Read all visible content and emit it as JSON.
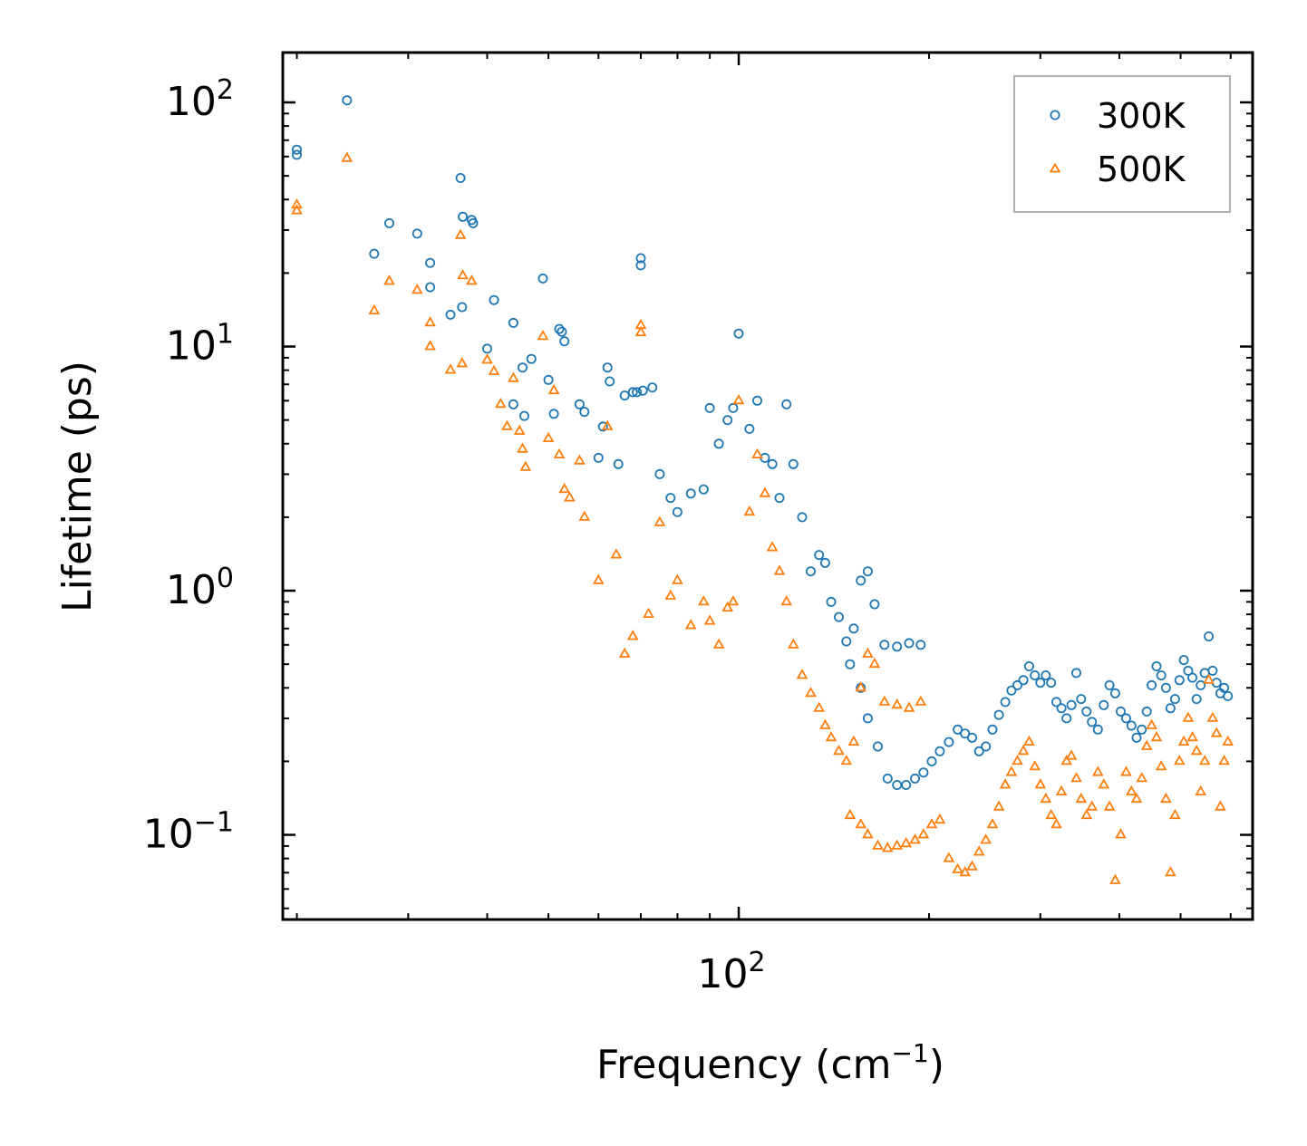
{
  "chart_data": {
    "type": "scatter",
    "xscale": "log",
    "yscale": "log",
    "xlabel": "Frequency (cm",
    "xlabel_sup": "−1",
    "xlabel_end": ")",
    "ylabel": "Lifetime (ps)",
    "xlim": [
      19,
      650
    ],
    "ylim": [
      0.045,
      160
    ],
    "legend_position": "upper right",
    "x_ticks": [
      {
        "base": "10",
        "exp": "2",
        "value": 100
      }
    ],
    "y_ticks": [
      {
        "base": "10",
        "exp": "2",
        "value": 100
      },
      {
        "base": "10",
        "exp": "1",
        "value": 10
      },
      {
        "base": "10",
        "exp": "0",
        "value": 1
      },
      {
        "base": "10",
        "exp": "−1",
        "value": 0.1
      }
    ],
    "series": [
      {
        "name": "300K",
        "marker": "circle",
        "color": "#1f77b4",
        "points": [
          [
            20,
            64
          ],
          [
            20,
            61
          ],
          [
            24,
            102
          ],
          [
            26.5,
            24
          ],
          [
            28,
            32
          ],
          [
            31,
            29
          ],
          [
            32.5,
            22
          ],
          [
            32.5,
            17.5
          ],
          [
            35,
            13.5
          ],
          [
            36.5,
            14.5
          ],
          [
            36.3,
            49
          ],
          [
            36.6,
            34
          ],
          [
            37.8,
            33
          ],
          [
            38,
            32
          ],
          [
            40,
            9.8
          ],
          [
            41,
            15.5
          ],
          [
            44,
            12.5
          ],
          [
            44,
            5.8
          ],
          [
            45.5,
            8.2
          ],
          [
            45.8,
            5.2
          ],
          [
            47,
            8.9
          ],
          [
            49,
            19
          ],
          [
            50,
            7.3
          ],
          [
            51,
            5.3
          ],
          [
            52,
            11.8
          ],
          [
            52.5,
            11.5
          ],
          [
            53,
            10.5
          ],
          [
            56,
            5.8
          ],
          [
            57,
            5.4
          ],
          [
            60,
            3.5
          ],
          [
            61,
            4.7
          ],
          [
            62,
            8.2
          ],
          [
            62.5,
            7.2
          ],
          [
            64.5,
            3.3
          ],
          [
            66,
            6.3
          ],
          [
            68,
            6.5
          ],
          [
            69,
            6.5
          ],
          [
            70,
            23
          ],
          [
            70,
            21.5
          ],
          [
            70.5,
            6.6
          ],
          [
            73,
            6.8
          ],
          [
            75,
            3.0
          ],
          [
            78,
            2.4
          ],
          [
            80,
            2.1
          ],
          [
            84,
            2.5
          ],
          [
            88,
            2.6
          ],
          [
            90,
            5.6
          ],
          [
            93,
            4.0
          ],
          [
            96,
            5.0
          ],
          [
            98,
            5.6
          ],
          [
            100,
            11.3
          ],
          [
            104,
            4.6
          ],
          [
            107,
            6.0
          ],
          [
            110,
            3.5
          ],
          [
            113,
            3.3
          ],
          [
            116,
            2.4
          ],
          [
            119,
            5.8
          ],
          [
            122,
            3.3
          ],
          [
            126,
            2.0
          ],
          [
            130,
            1.2
          ],
          [
            134,
            1.4
          ],
          [
            137,
            1.3
          ],
          [
            140,
            0.9
          ],
          [
            144,
            0.78
          ],
          [
            148,
            0.62
          ],
          [
            152,
            0.7
          ],
          [
            156,
            1.1
          ],
          [
            160,
            1.2
          ],
          [
            164,
            0.88
          ],
          [
            170,
            0.6
          ],
          [
            178,
            0.59
          ],
          [
            186,
            0.61
          ],
          [
            194,
            0.6
          ],
          [
            150,
            0.5
          ],
          [
            156,
            0.4
          ],
          [
            160,
            0.3
          ],
          [
            166,
            0.23
          ],
          [
            172,
            0.17
          ],
          [
            178,
            0.16
          ],
          [
            184,
            0.16
          ],
          [
            190,
            0.17
          ],
          [
            196,
            0.18
          ],
          [
            202,
            0.2
          ],
          [
            208,
            0.22
          ],
          [
            215,
            0.24
          ],
          [
            222,
            0.27
          ],
          [
            228,
            0.26
          ],
          [
            234,
            0.25
          ],
          [
            240,
            0.22
          ],
          [
            246,
            0.23
          ],
          [
            252,
            0.27
          ],
          [
            258,
            0.31
          ],
          [
            264,
            0.35
          ],
          [
            270,
            0.39
          ],
          [
            276,
            0.41
          ],
          [
            282,
            0.43
          ],
          [
            288,
            0.49
          ],
          [
            294,
            0.45
          ],
          [
            300,
            0.42
          ],
          [
            306,
            0.45
          ],
          [
            312,
            0.42
          ],
          [
            318,
            0.35
          ],
          [
            324,
            0.33
          ],
          [
            330,
            0.3
          ],
          [
            336,
            0.34
          ],
          [
            342,
            0.46
          ],
          [
            348,
            0.36
          ],
          [
            355,
            0.32
          ],
          [
            362,
            0.29
          ],
          [
            370,
            0.27
          ],
          [
            378,
            0.34
          ],
          [
            386,
            0.41
          ],
          [
            394,
            0.38
          ],
          [
            402,
            0.32
          ],
          [
            410,
            0.3
          ],
          [
            418,
            0.28
          ],
          [
            426,
            0.25
          ],
          [
            434,
            0.27
          ],
          [
            442,
            0.32
          ],
          [
            450,
            0.41
          ],
          [
            458,
            0.49
          ],
          [
            466,
            0.45
          ],
          [
            474,
            0.4
          ],
          [
            482,
            0.33
          ],
          [
            490,
            0.36
          ],
          [
            498,
            0.43
          ],
          [
            506,
            0.52
          ],
          [
            514,
            0.47
          ],
          [
            522,
            0.44
          ],
          [
            530,
            0.36
          ],
          [
            538,
            0.41
          ],
          [
            546,
            0.46
          ],
          [
            554,
            0.65
          ],
          [
            562,
            0.47
          ],
          [
            570,
            0.42
          ],
          [
            578,
            0.38
          ],
          [
            586,
            0.4
          ],
          [
            594,
            0.37
          ]
        ]
      },
      {
        "name": "500K",
        "marker": "triangle",
        "color": "#ff7f0e",
        "points": [
          [
            20,
            38
          ],
          [
            20,
            36
          ],
          [
            24,
            59
          ],
          [
            26.5,
            14
          ],
          [
            28,
            18.5
          ],
          [
            31,
            17
          ],
          [
            32.5,
            12.5
          ],
          [
            32.5,
            10
          ],
          [
            35,
            8
          ],
          [
            36.5,
            8.5
          ],
          [
            36.3,
            28.5
          ],
          [
            36.6,
            19.5
          ],
          [
            37.8,
            18.5
          ],
          [
            40,
            8.8
          ],
          [
            41,
            7.9
          ],
          [
            42,
            5.8
          ],
          [
            43,
            4.7
          ],
          [
            44,
            7.4
          ],
          [
            45,
            4.5
          ],
          [
            45.5,
            3.8
          ],
          [
            46,
            3.2
          ],
          [
            49,
            11
          ],
          [
            50,
            4.2
          ],
          [
            51,
            6.6
          ],
          [
            52,
            3.6
          ],
          [
            53,
            2.6
          ],
          [
            54,
            2.4
          ],
          [
            56,
            3.4
          ],
          [
            57,
            2.0
          ],
          [
            60,
            1.1
          ],
          [
            62,
            4.7
          ],
          [
            64,
            1.4
          ],
          [
            66,
            0.55
          ],
          [
            68,
            0.65
          ],
          [
            70,
            12.2
          ],
          [
            70,
            11.4
          ],
          [
            72,
            0.8
          ],
          [
            75,
            1.9
          ],
          [
            78,
            0.95
          ],
          [
            80,
            1.1
          ],
          [
            84,
            0.72
          ],
          [
            88,
            0.9
          ],
          [
            90,
            0.75
          ],
          [
            93,
            0.6
          ],
          [
            96,
            0.85
          ],
          [
            98,
            0.9
          ],
          [
            100,
            6.0
          ],
          [
            104,
            2.1
          ],
          [
            107,
            3.6
          ],
          [
            110,
            2.5
          ],
          [
            113,
            1.5
          ],
          [
            116,
            1.2
          ],
          [
            119,
            0.9
          ],
          [
            122,
            0.6
          ],
          [
            126,
            0.45
          ],
          [
            130,
            0.38
          ],
          [
            134,
            0.33
          ],
          [
            137,
            0.28
          ],
          [
            140,
            0.25
          ],
          [
            144,
            0.22
          ],
          [
            148,
            0.2
          ],
          [
            152,
            0.24
          ],
          [
            156,
            0.4
          ],
          [
            160,
            0.55
          ],
          [
            164,
            0.5
          ],
          [
            170,
            0.35
          ],
          [
            178,
            0.34
          ],
          [
            186,
            0.33
          ],
          [
            194,
            0.35
          ],
          [
            150,
            0.12
          ],
          [
            156,
            0.11
          ],
          [
            160,
            0.1
          ],
          [
            166,
            0.09
          ],
          [
            172,
            0.088
          ],
          [
            178,
            0.09
          ],
          [
            184,
            0.092
          ],
          [
            190,
            0.095
          ],
          [
            196,
            0.1
          ],
          [
            202,
            0.11
          ],
          [
            208,
            0.115
          ],
          [
            215,
            0.08
          ],
          [
            222,
            0.072
          ],
          [
            228,
            0.07
          ],
          [
            234,
            0.074
          ],
          [
            240,
            0.085
          ],
          [
            246,
            0.095
          ],
          [
            252,
            0.11
          ],
          [
            258,
            0.13
          ],
          [
            264,
            0.16
          ],
          [
            270,
            0.18
          ],
          [
            276,
            0.2
          ],
          [
            282,
            0.22
          ],
          [
            288,
            0.24
          ],
          [
            294,
            0.19
          ],
          [
            300,
            0.16
          ],
          [
            306,
            0.14
          ],
          [
            312,
            0.12
          ],
          [
            318,
            0.11
          ],
          [
            324,
            0.15
          ],
          [
            330,
            0.2
          ],
          [
            336,
            0.21
          ],
          [
            342,
            0.17
          ],
          [
            348,
            0.14
          ],
          [
            355,
            0.12
          ],
          [
            362,
            0.13
          ],
          [
            370,
            0.18
          ],
          [
            378,
            0.16
          ],
          [
            386,
            0.13
          ],
          [
            394,
            0.065
          ],
          [
            402,
            0.1
          ],
          [
            410,
            0.18
          ],
          [
            418,
            0.15
          ],
          [
            426,
            0.14
          ],
          [
            434,
            0.17
          ],
          [
            442,
            0.23
          ],
          [
            450,
            0.28
          ],
          [
            458,
            0.25
          ],
          [
            466,
            0.19
          ],
          [
            474,
            0.14
          ],
          [
            482,
            0.07
          ],
          [
            490,
            0.12
          ],
          [
            498,
            0.2
          ],
          [
            506,
            0.24
          ],
          [
            514,
            0.3
          ],
          [
            522,
            0.25
          ],
          [
            530,
            0.22
          ],
          [
            538,
            0.15
          ],
          [
            546,
            0.2
          ],
          [
            554,
            0.43
          ],
          [
            562,
            0.3
          ],
          [
            570,
            0.26
          ],
          [
            578,
            0.13
          ],
          [
            586,
            0.2
          ],
          [
            594,
            0.24
          ]
        ]
      }
    ]
  }
}
